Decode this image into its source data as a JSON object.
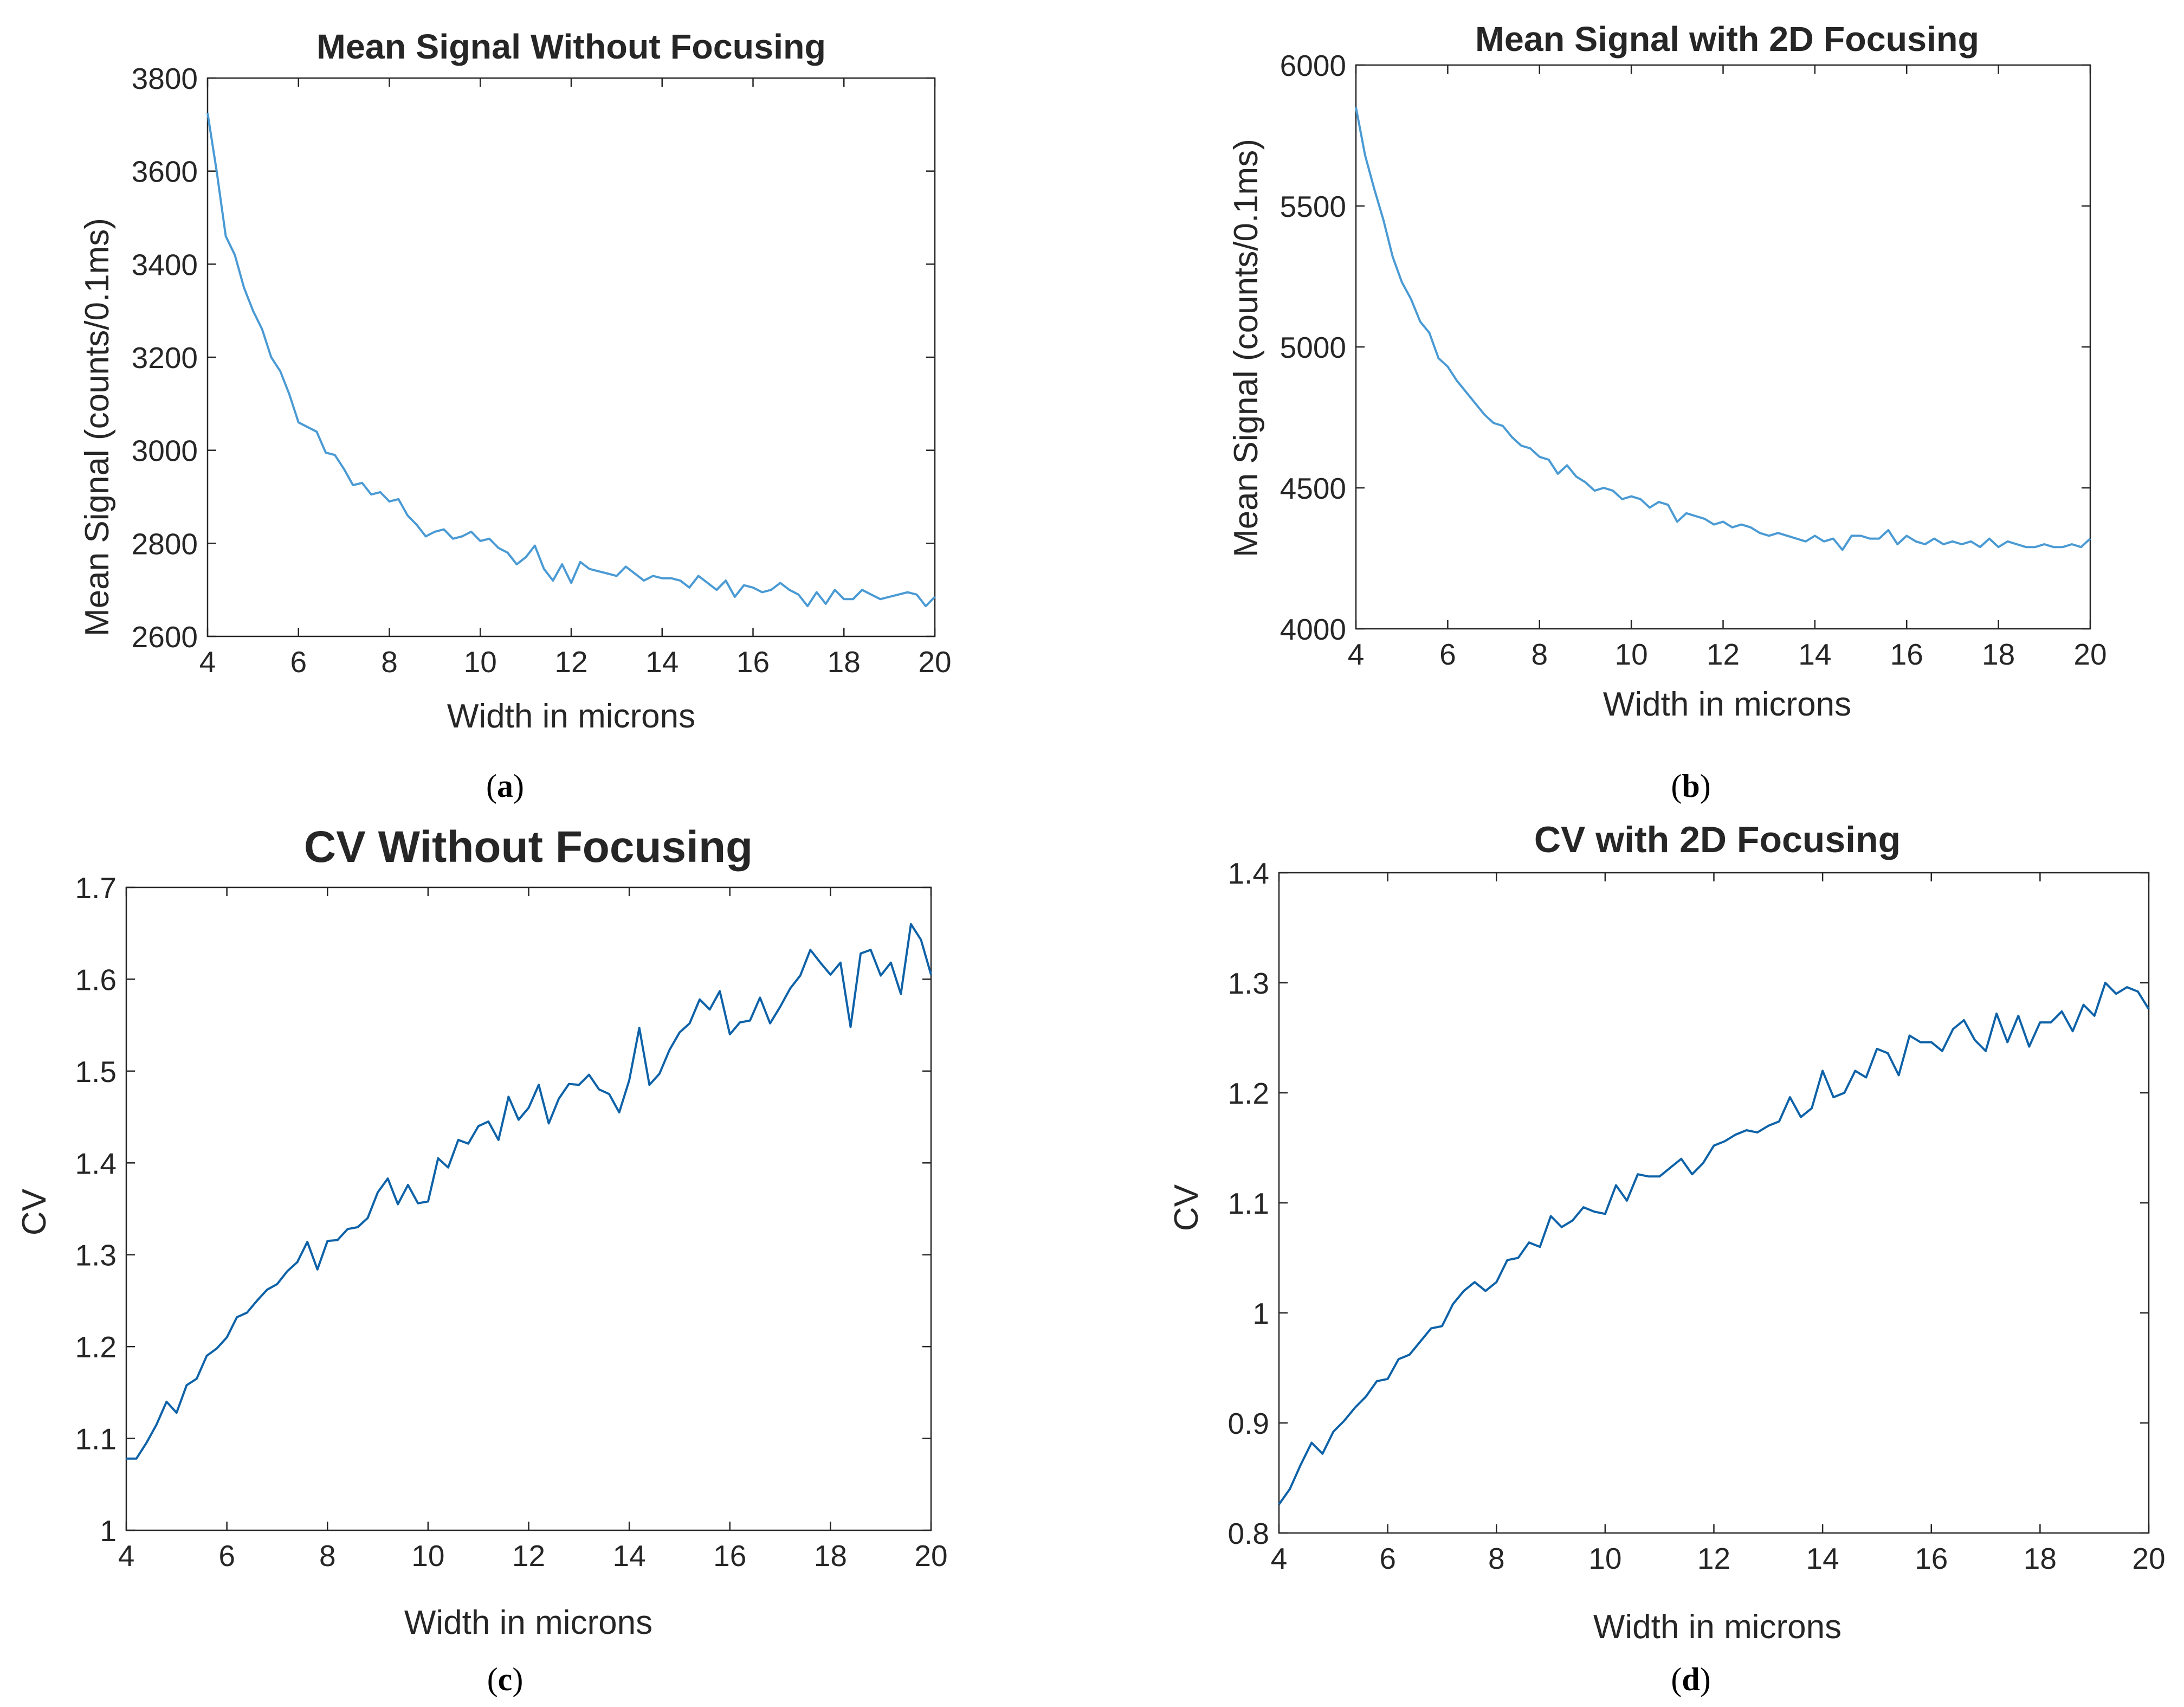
{
  "figure": {
    "panels": [
      {
        "caption": "a"
      },
      {
        "caption": "b"
      },
      {
        "caption": "c"
      },
      {
        "caption": "d"
      }
    ]
  },
  "colors": {
    "series_top": "#4a9ad4",
    "series_bottom": "#0e62a8",
    "axis": "#262626"
  },
  "chart_data": [
    {
      "type": "line",
      "title": "Mean Signal Without Focusing",
      "xlabel": "Width in microns",
      "ylabel": "Mean Signal  (counts/0.1ms)",
      "xlim": [
        4,
        20
      ],
      "ylim": [
        2600,
        3800
      ],
      "xticks": [
        "4",
        "6",
        "8",
        "10",
        "12",
        "14",
        "16",
        "18",
        "20"
      ],
      "yticks": [
        "2600",
        "2800",
        "3000",
        "3200",
        "3400",
        "3600",
        "3800"
      ],
      "grid": false,
      "series": [
        {
          "x": [
            4.0,
            4.2,
            4.4,
            4.6,
            4.8,
            5.0,
            5.2,
            5.4,
            5.6,
            5.8,
            6.0,
            6.2,
            6.4,
            6.6,
            6.8,
            7.0,
            7.2,
            7.4,
            7.6,
            7.8,
            8.0,
            8.2,
            8.4,
            8.6,
            8.8,
            9.0,
            9.2,
            9.4,
            9.6,
            9.8,
            10.0,
            10.2,
            10.4,
            10.6,
            10.8,
            11.0,
            11.2,
            11.4,
            11.6,
            11.8,
            12.0,
            12.2,
            12.4,
            12.6,
            12.8,
            13.0,
            13.2,
            13.4,
            13.6,
            13.8,
            14.0,
            14.2,
            14.4,
            14.6,
            14.8,
            15.0,
            15.2,
            15.4,
            15.6,
            15.8,
            16.0,
            16.2,
            16.4,
            16.6,
            16.8,
            17.0,
            17.2,
            17.4,
            17.6,
            17.8,
            18.0,
            18.2,
            18.4,
            18.6,
            18.8,
            19.0,
            19.2,
            19.4,
            19.6,
            19.8,
            20.0
          ],
          "y": [
            3725,
            3600,
            3460,
            3420,
            3350,
            3300,
            3260,
            3200,
            3170,
            3120,
            3060,
            3050,
            3040,
            2995,
            2990,
            2960,
            2925,
            2930,
            2905,
            2910,
            2890,
            2895,
            2860,
            2840,
            2815,
            2825,
            2830,
            2810,
            2815,
            2825,
            2805,
            2810,
            2790,
            2780,
            2755,
            2770,
            2795,
            2745,
            2720,
            2755,
            2715,
            2760,
            2745,
            2740,
            2735,
            2730,
            2750,
            2735,
            2720,
            2730,
            2725,
            2725,
            2720,
            2705,
            2730,
            2715,
            2700,
            2720,
            2685,
            2710,
            2705,
            2695,
            2700,
            2715,
            2700,
            2690,
            2665,
            2695,
            2670,
            2700,
            2680,
            2680,
            2700,
            2690,
            2680,
            2685,
            2690,
            2695,
            2690,
            2665,
            2685
          ]
        }
      ]
    },
    {
      "type": "line",
      "title": "Mean Signal with 2D Focusing",
      "xlabel": "Width in microns",
      "ylabel": "Mean Signal  (counts/0.1ms)",
      "xlim": [
        4,
        20
      ],
      "ylim": [
        4000,
        6000
      ],
      "xticks": [
        "4",
        "6",
        "8",
        "10",
        "12",
        "14",
        "16",
        "18",
        "20"
      ],
      "yticks": [
        "4000",
        "4500",
        "5000",
        "5500",
        "6000"
      ],
      "grid": false,
      "series": [
        {
          "x": [
            4.0,
            4.2,
            4.4,
            4.6,
            4.8,
            5.0,
            5.2,
            5.4,
            5.6,
            5.8,
            6.0,
            6.2,
            6.4,
            6.6,
            6.8,
            7.0,
            7.2,
            7.4,
            7.6,
            7.8,
            8.0,
            8.2,
            8.4,
            8.6,
            8.8,
            9.0,
            9.2,
            9.4,
            9.6,
            9.8,
            10.0,
            10.2,
            10.4,
            10.6,
            10.8,
            11.0,
            11.2,
            11.4,
            11.6,
            11.8,
            12.0,
            12.2,
            12.4,
            12.6,
            12.8,
            13.0,
            13.2,
            13.4,
            13.6,
            13.8,
            14.0,
            14.2,
            14.4,
            14.6,
            14.8,
            15.0,
            15.2,
            15.4,
            15.6,
            15.8,
            16.0,
            16.2,
            16.4,
            16.6,
            16.8,
            17.0,
            17.2,
            17.4,
            17.6,
            17.8,
            18.0,
            18.2,
            18.4,
            18.6,
            18.8,
            19.0,
            19.2,
            19.4,
            19.6,
            19.8,
            20.0
          ],
          "y": [
            5850,
            5680,
            5560,
            5450,
            5320,
            5230,
            5170,
            5090,
            5050,
            4960,
            4930,
            4880,
            4840,
            4800,
            4760,
            4730,
            4720,
            4680,
            4650,
            4640,
            4610,
            4600,
            4550,
            4580,
            4540,
            4520,
            4490,
            4500,
            4490,
            4460,
            4470,
            4460,
            4430,
            4450,
            4440,
            4380,
            4410,
            4400,
            4390,
            4370,
            4380,
            4360,
            4370,
            4360,
            4340,
            4330,
            4340,
            4330,
            4320,
            4310,
            4330,
            4310,
            4320,
            4280,
            4330,
            4330,
            4320,
            4320,
            4350,
            4300,
            4330,
            4310,
            4300,
            4320,
            4300,
            4310,
            4300,
            4310,
            4290,
            4320,
            4290,
            4310,
            4300,
            4290,
            4290,
            4300,
            4290,
            4290,
            4300,
            4290,
            4320
          ]
        }
      ]
    },
    {
      "type": "line",
      "title": "CV Without Focusing",
      "xlabel": "Width in microns",
      "ylabel": "CV",
      "xlim": [
        4,
        20
      ],
      "ylim": [
        1,
        1.7
      ],
      "xticks": [
        "4",
        "6",
        "8",
        "10",
        "12",
        "14",
        "16",
        "18",
        "20"
      ],
      "yticks": [
        "1",
        "1.1",
        "1.2",
        "1.3",
        "1.4",
        "1.5",
        "1.6",
        "1.7"
      ],
      "grid": false,
      "series": [
        {
          "x": [
            4.0,
            4.2,
            4.4,
            4.6,
            4.8,
            5.0,
            5.2,
            5.4,
            5.6,
            5.8,
            6.0,
            6.2,
            6.4,
            6.6,
            6.8,
            7.0,
            7.2,
            7.4,
            7.6,
            7.8,
            8.0,
            8.2,
            8.4,
            8.6,
            8.8,
            9.0,
            9.2,
            9.4,
            9.6,
            9.8,
            10.0,
            10.2,
            10.4,
            10.6,
            10.8,
            11.0,
            11.2,
            11.4,
            11.6,
            11.8,
            12.0,
            12.2,
            12.4,
            12.6,
            12.8,
            13.0,
            13.2,
            13.4,
            13.6,
            13.8,
            14.0,
            14.2,
            14.4,
            14.6,
            14.8,
            15.0,
            15.2,
            15.4,
            15.6,
            15.8,
            16.0,
            16.2,
            16.4,
            16.6,
            16.8,
            17.0,
            17.2,
            17.4,
            17.6,
            17.8,
            18.0,
            18.2,
            18.4,
            18.6,
            18.8,
            19.0,
            19.2,
            19.4,
            19.6,
            19.8,
            20.0
          ],
          "y": [
            1.078,
            1.078,
            1.095,
            1.115,
            1.14,
            1.128,
            1.158,
            1.165,
            1.19,
            1.198,
            1.21,
            1.232,
            1.237,
            1.25,
            1.262,
            1.268,
            1.282,
            1.292,
            1.314,
            1.284,
            1.315,
            1.316,
            1.328,
            1.33,
            1.34,
            1.368,
            1.383,
            1.355,
            1.376,
            1.356,
            1.358,
            1.405,
            1.395,
            1.425,
            1.421,
            1.44,
            1.445,
            1.425,
            1.472,
            1.447,
            1.46,
            1.485,
            1.443,
            1.47,
            1.486,
            1.485,
            1.496,
            1.48,
            1.475,
            1.455,
            1.49,
            1.547,
            1.485,
            1.497,
            1.523,
            1.542,
            1.552,
            1.578,
            1.567,
            1.587,
            1.54,
            1.553,
            1.555,
            1.58,
            1.552,
            1.57,
            1.59,
            1.604,
            1.632,
            1.618,
            1.605,
            1.618,
            1.548,
            1.628,
            1.632,
            1.604,
            1.618,
            1.584,
            1.66,
            1.643,
            1.605
          ]
        }
      ]
    },
    {
      "type": "line",
      "title": "CV with 2D Focusing",
      "xlabel": "Width in microns",
      "ylabel": "CV",
      "xlim": [
        4,
        20
      ],
      "ylim": [
        0.8,
        1.4
      ],
      "xticks": [
        "4",
        "6",
        "8",
        "10",
        "12",
        "14",
        "16",
        "18",
        "20"
      ],
      "yticks": [
        "0.8",
        "0.9",
        "1",
        "1.1",
        "1.2",
        "1.3",
        "1.4"
      ],
      "grid": false,
      "series": [
        {
          "x": [
            4.0,
            4.2,
            4.4,
            4.6,
            4.8,
            5.0,
            5.2,
            5.4,
            5.6,
            5.8,
            6.0,
            6.2,
            6.4,
            6.6,
            6.8,
            7.0,
            7.2,
            7.4,
            7.6,
            7.8,
            8.0,
            8.2,
            8.4,
            8.6,
            8.8,
            9.0,
            9.2,
            9.4,
            9.6,
            9.8,
            10.0,
            10.2,
            10.4,
            10.6,
            10.8,
            11.0,
            11.2,
            11.4,
            11.6,
            11.8,
            12.0,
            12.2,
            12.4,
            12.6,
            12.8,
            13.0,
            13.2,
            13.4,
            13.6,
            13.8,
            14.0,
            14.2,
            14.4,
            14.6,
            14.8,
            15.0,
            15.2,
            15.4,
            15.6,
            15.8,
            16.0,
            16.2,
            16.4,
            16.6,
            16.8,
            17.0,
            17.2,
            17.4,
            17.6,
            17.8,
            18.0,
            18.2,
            18.4,
            18.6,
            18.8,
            19.0,
            19.2,
            19.4,
            19.6,
            19.8,
            20.0
          ],
          "y": [
            0.826,
            0.84,
            0.862,
            0.882,
            0.872,
            0.892,
            0.902,
            0.914,
            0.924,
            0.938,
            0.94,
            0.958,
            0.962,
            0.974,
            0.986,
            0.988,
            1.008,
            1.02,
            1.028,
            1.02,
            1.028,
            1.048,
            1.05,
            1.064,
            1.06,
            1.088,
            1.078,
            1.084,
            1.096,
            1.092,
            1.09,
            1.116,
            1.102,
            1.126,
            1.124,
            1.124,
            1.132,
            1.14,
            1.126,
            1.136,
            1.152,
            1.156,
            1.162,
            1.166,
            1.164,
            1.17,
            1.174,
            1.196,
            1.178,
            1.186,
            1.22,
            1.196,
            1.2,
            1.22,
            1.214,
            1.24,
            1.236,
            1.216,
            1.252,
            1.246,
            1.246,
            1.238,
            1.258,
            1.266,
            1.248,
            1.238,
            1.272,
            1.246,
            1.27,
            1.242,
            1.264,
            1.264,
            1.274,
            1.256,
            1.28,
            1.27,
            1.3,
            1.29,
            1.296,
            1.292,
            1.276
          ]
        }
      ]
    }
  ]
}
